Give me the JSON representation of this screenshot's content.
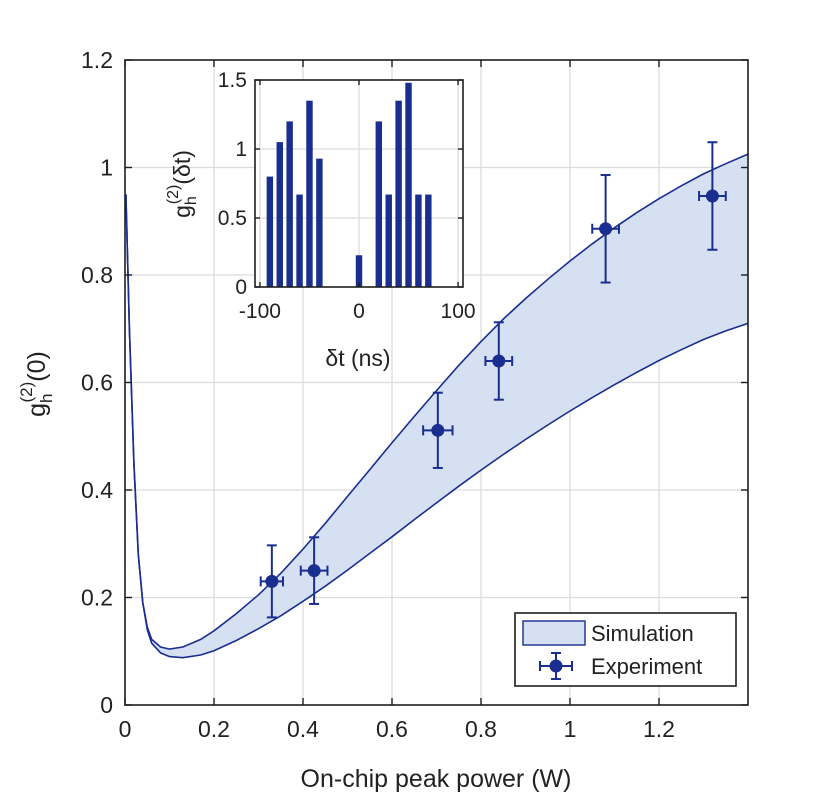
{
  "chart_data": {
    "main": {
      "type": "line",
      "xlabel": "On-chip peak power (W)",
      "ylabel_base": "g",
      "ylabel_sub": "h",
      "ylabel_sup": "(2)",
      "ylabel_arg": "(0)",
      "xlim": [
        0,
        1.4
      ],
      "ylim": [
        0,
        1.2
      ],
      "xticks": [
        0,
        0.2,
        0.4,
        0.6,
        0.8,
        1,
        1.2
      ],
      "xtick_labels": [
        "0",
        "0.2",
        "0.4",
        "0.6",
        "0.8",
        "1",
        "1.2"
      ],
      "yticks": [
        0,
        0.2,
        0.4,
        0.6,
        0.8,
        1,
        1.2
      ],
      "ytick_labels": [
        "0",
        "0.2",
        "0.4",
        "0.6",
        "0.8",
        "1",
        "1.2"
      ],
      "grid": true,
      "legend_position": "bottom-right",
      "series": [
        {
          "name": "Simulation",
          "kind": "band",
          "upper": [
            [
              0.002,
              0.95
            ],
            [
              0.01,
              0.7
            ],
            [
              0.02,
              0.45
            ],
            [
              0.03,
              0.28
            ],
            [
              0.04,
              0.19
            ],
            [
              0.05,
              0.145
            ],
            [
              0.06,
              0.122
            ],
            [
              0.08,
              0.108
            ],
            [
              0.1,
              0.104
            ],
            [
              0.13,
              0.108
            ],
            [
              0.17,
              0.122
            ],
            [
              0.2,
              0.138
            ],
            [
              0.25,
              0.17
            ],
            [
              0.3,
              0.205
            ],
            [
              0.35,
              0.245
            ],
            [
              0.4,
              0.29
            ],
            [
              0.45,
              0.338
            ],
            [
              0.5,
              0.388
            ],
            [
              0.55,
              0.438
            ],
            [
              0.6,
              0.488
            ],
            [
              0.65,
              0.537
            ],
            [
              0.7,
              0.585
            ],
            [
              0.75,
              0.632
            ],
            [
              0.8,
              0.676
            ],
            [
              0.85,
              0.718
            ],
            [
              0.9,
              0.756
            ],
            [
              0.95,
              0.792
            ],
            [
              1.0,
              0.826
            ],
            [
              1.05,
              0.858
            ],
            [
              1.1,
              0.888
            ],
            [
              1.15,
              0.916
            ],
            [
              1.2,
              0.942
            ],
            [
              1.25,
              0.966
            ],
            [
              1.3,
              0.988
            ],
            [
              1.35,
              1.007
            ],
            [
              1.4,
              1.025
            ]
          ],
          "lower": [
            [
              0.002,
              0.95
            ],
            [
              0.01,
              0.7
            ],
            [
              0.02,
              0.45
            ],
            [
              0.03,
              0.28
            ],
            [
              0.04,
              0.19
            ],
            [
              0.05,
              0.14
            ],
            [
              0.06,
              0.115
            ],
            [
              0.08,
              0.097
            ],
            [
              0.1,
              0.09
            ],
            [
              0.13,
              0.088
            ],
            [
              0.17,
              0.093
            ],
            [
              0.2,
              0.101
            ],
            [
              0.25,
              0.12
            ],
            [
              0.3,
              0.142
            ],
            [
              0.35,
              0.166
            ],
            [
              0.4,
              0.193
            ],
            [
              0.45,
              0.221
            ],
            [
              0.5,
              0.251
            ],
            [
              0.55,
              0.282
            ],
            [
              0.6,
              0.313
            ],
            [
              0.65,
              0.345
            ],
            [
              0.7,
              0.376
            ],
            [
              0.75,
              0.407
            ],
            [
              0.8,
              0.437
            ],
            [
              0.85,
              0.466
            ],
            [
              0.9,
              0.494
            ],
            [
              0.95,
              0.521
            ],
            [
              1.0,
              0.547
            ],
            [
              1.05,
              0.572
            ],
            [
              1.1,
              0.596
            ],
            [
              1.15,
              0.619
            ],
            [
              1.2,
              0.641
            ],
            [
              1.25,
              0.661
            ],
            [
              1.3,
              0.68
            ],
            [
              1.35,
              0.696
            ],
            [
              1.4,
              0.71
            ]
          ]
        },
        {
          "name": "Experiment",
          "kind": "errorbar",
          "points": [
            {
              "x": 0.33,
              "y": 0.23,
              "xerr": 0.025,
              "yerr": 0.067
            },
            {
              "x": 0.425,
              "y": 0.25,
              "xerr": 0.03,
              "yerr": 0.062
            },
            {
              "x": 0.703,
              "y": 0.511,
              "xerr": 0.033,
              "yerr": 0.07
            },
            {
              "x": 0.84,
              "y": 0.64,
              "xerr": 0.03,
              "yerr": 0.072
            },
            {
              "x": 1.08,
              "y": 0.886,
              "xerr": 0.03,
              "yerr": 0.1
            },
            {
              "x": 1.32,
              "y": 0.947,
              "xerr": 0.03,
              "yerr": 0.1
            }
          ]
        }
      ]
    },
    "inset": {
      "type": "bar",
      "xlabel": "δt (ns)",
      "ylabel_base": "g",
      "ylabel_sub": "h",
      "ylabel_sup": "(2)",
      "ylabel_arg": "(δt)",
      "xlim": [
        -105,
        105
      ],
      "ylim": [
        0,
        1.5
      ],
      "xticks": [
        -100,
        0,
        100
      ],
      "xtick_labels": [
        "-100",
        "0",
        "100"
      ],
      "yticks": [
        0,
        0.5,
        1,
        1.5
      ],
      "ytick_labels": [
        "0",
        "0.5",
        "1",
        "1.5"
      ],
      "x": [
        -90,
        -80,
        -70,
        -60,
        -50,
        -40,
        -30,
        -20,
        -10,
        0,
        10,
        20,
        30,
        40,
        50,
        60,
        70,
        80,
        90
      ],
      "values": [
        0.8,
        1.05,
        1.2,
        0.67,
        1.35,
        0.93,
        null,
        null,
        null,
        0.23,
        null,
        1.2,
        0.67,
        1.35,
        1.48,
        0.67,
        0.67,
        null,
        null
      ],
      "bar_width": 6.5
    }
  },
  "colors": {
    "line": "#1a2e8f",
    "fill": "#d5e0f3",
    "marker": "#1a2e8f",
    "bar": "#1a2e8f"
  },
  "legend": {
    "simulation_label": "Simulation",
    "experiment_label": "Experiment"
  }
}
